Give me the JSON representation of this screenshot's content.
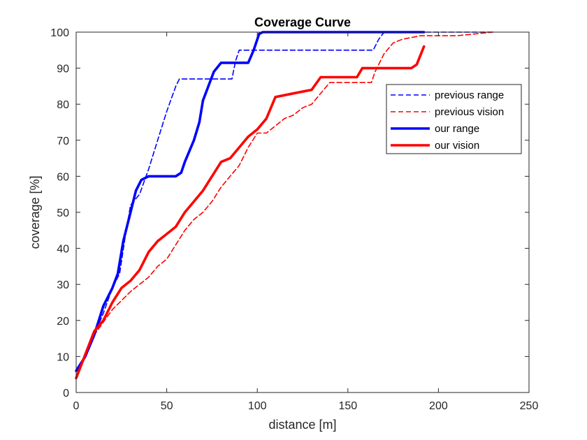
{
  "chart_data": {
    "type": "line",
    "title": "Coverage Curve",
    "xlabel": "distance [m]",
    "ylabel": "coverage [%]",
    "xlim": [
      0,
      250
    ],
    "ylim": [
      0,
      100
    ],
    "xticks": [
      0,
      50,
      100,
      150,
      200,
      250
    ],
    "yticks": [
      0,
      10,
      20,
      30,
      40,
      50,
      60,
      70,
      80,
      90,
      100
    ],
    "grid": false,
    "legend_position": "upper-right",
    "series": [
      {
        "name": "previous range",
        "color": "#0000ff",
        "style": "dashed",
        "points": [
          [
            0,
            6
          ],
          [
            5,
            10
          ],
          [
            10,
            16
          ],
          [
            15,
            22
          ],
          [
            20,
            29
          ],
          [
            24,
            33
          ],
          [
            27,
            43
          ],
          [
            30,
            52
          ],
          [
            35,
            55
          ],
          [
            40,
            62
          ],
          [
            45,
            70
          ],
          [
            50,
            78
          ],
          [
            55,
            85
          ],
          [
            57,
            87
          ],
          [
            86,
            87
          ],
          [
            88,
            92
          ],
          [
            90,
            95
          ],
          [
            164,
            95
          ],
          [
            167,
            98
          ],
          [
            170,
            100
          ],
          [
            230,
            100
          ]
        ]
      },
      {
        "name": "previous vision",
        "color": "#ff0000",
        "style": "dashed",
        "points": [
          [
            0,
            4
          ],
          [
            10,
            16
          ],
          [
            20,
            23
          ],
          [
            30,
            28
          ],
          [
            35,
            30
          ],
          [
            40,
            32
          ],
          [
            45,
            35
          ],
          [
            50,
            37
          ],
          [
            55,
            41
          ],
          [
            60,
            45
          ],
          [
            65,
            48
          ],
          [
            70,
            50
          ],
          [
            75,
            53
          ],
          [
            80,
            57
          ],
          [
            85,
            60
          ],
          [
            90,
            63
          ],
          [
            95,
            68
          ],
          [
            100,
            72
          ],
          [
            105,
            72
          ],
          [
            110,
            74
          ],
          [
            115,
            76
          ],
          [
            120,
            77
          ],
          [
            125,
            79
          ],
          [
            130,
            80
          ],
          [
            135,
            83
          ],
          [
            140,
            86
          ],
          [
            163,
            86
          ],
          [
            165,
            89
          ],
          [
            170,
            94
          ],
          [
            175,
            97
          ],
          [
            180,
            98
          ],
          [
            190,
            99
          ],
          [
            210,
            99
          ],
          [
            230,
            100
          ]
        ]
      },
      {
        "name": "our range",
        "color": "#0000ff",
        "style": "solid",
        "points": [
          [
            0,
            6
          ],
          [
            5,
            10
          ],
          [
            10,
            16
          ],
          [
            15,
            24
          ],
          [
            20,
            29
          ],
          [
            23,
            33
          ],
          [
            26,
            42
          ],
          [
            30,
            50
          ],
          [
            33,
            56
          ],
          [
            36,
            59
          ],
          [
            40,
            60
          ],
          [
            55,
            60
          ],
          [
            58,
            61
          ],
          [
            60,
            64
          ],
          [
            65,
            70
          ],
          [
            68,
            75
          ],
          [
            70,
            81
          ],
          [
            73,
            85
          ],
          [
            76,
            89
          ],
          [
            80,
            91.5
          ],
          [
            95,
            91.5
          ],
          [
            98,
            95
          ],
          [
            101,
            99.5
          ],
          [
            103,
            100
          ],
          [
            192,
            100
          ]
        ]
      },
      {
        "name": "our vision",
        "color": "#ff0000",
        "style": "solid",
        "points": [
          [
            0,
            4
          ],
          [
            10,
            17
          ],
          [
            15,
            20
          ],
          [
            20,
            25
          ],
          [
            25,
            29
          ],
          [
            30,
            31
          ],
          [
            35,
            34
          ],
          [
            40,
            39
          ],
          [
            45,
            42
          ],
          [
            50,
            44
          ],
          [
            55,
            46
          ],
          [
            60,
            50
          ],
          [
            65,
            53
          ],
          [
            70,
            56
          ],
          [
            75,
            60
          ],
          [
            80,
            64
          ],
          [
            85,
            65
          ],
          [
            90,
            68
          ],
          [
            95,
            71
          ],
          [
            100,
            73
          ],
          [
            105,
            76
          ],
          [
            110,
            82
          ],
          [
            115,
            82.5
          ],
          [
            120,
            83
          ],
          [
            130,
            84
          ],
          [
            135,
            87.5
          ],
          [
            155,
            87.5
          ],
          [
            158,
            90
          ],
          [
            185,
            90
          ],
          [
            188,
            91
          ],
          [
            192,
            96
          ]
        ]
      }
    ]
  }
}
